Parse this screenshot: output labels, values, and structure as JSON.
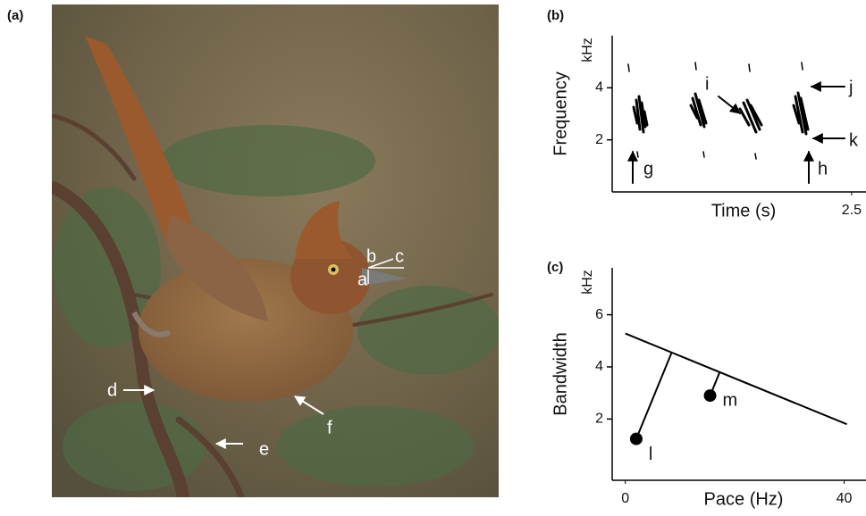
{
  "photo": {
    "label": "(a)",
    "annotations": [
      "a",
      "b",
      "c",
      "d",
      "e",
      "f"
    ]
  },
  "chart_data": [
    {
      "type": "spectrogram",
      "label": "(b)",
      "y_label": "Frequency",
      "y_unit": "kHz",
      "x_label": "Time (s)",
      "xlim": [
        0,
        2.65
      ],
      "ylim": [
        0,
        6
      ],
      "xticks": [
        2.5
      ],
      "yticks": [
        2,
        4
      ],
      "annotations": [
        "g",
        "h",
        "i",
        "j",
        "k"
      ]
    },
    {
      "type": "scatter",
      "label": "(c)",
      "y_label": "Bandwidth",
      "y_unit": "kHz",
      "x_label": "Pace (Hz)",
      "xlim": [
        -2.4,
        44
      ],
      "ylim": [
        -0.35,
        7.8
      ],
      "xticks": [
        0,
        40
      ],
      "yticks": [
        2,
        4,
        6
      ],
      "points": {
        "labels": [
          "l",
          "m"
        ],
        "x": [
          2,
          15.5
        ],
        "y": [
          1.24,
          2.9
        ]
      },
      "regression_line": {
        "x": [
          0,
          40.5
        ],
        "y": [
          5.28,
          1.8
        ]
      }
    }
  ]
}
